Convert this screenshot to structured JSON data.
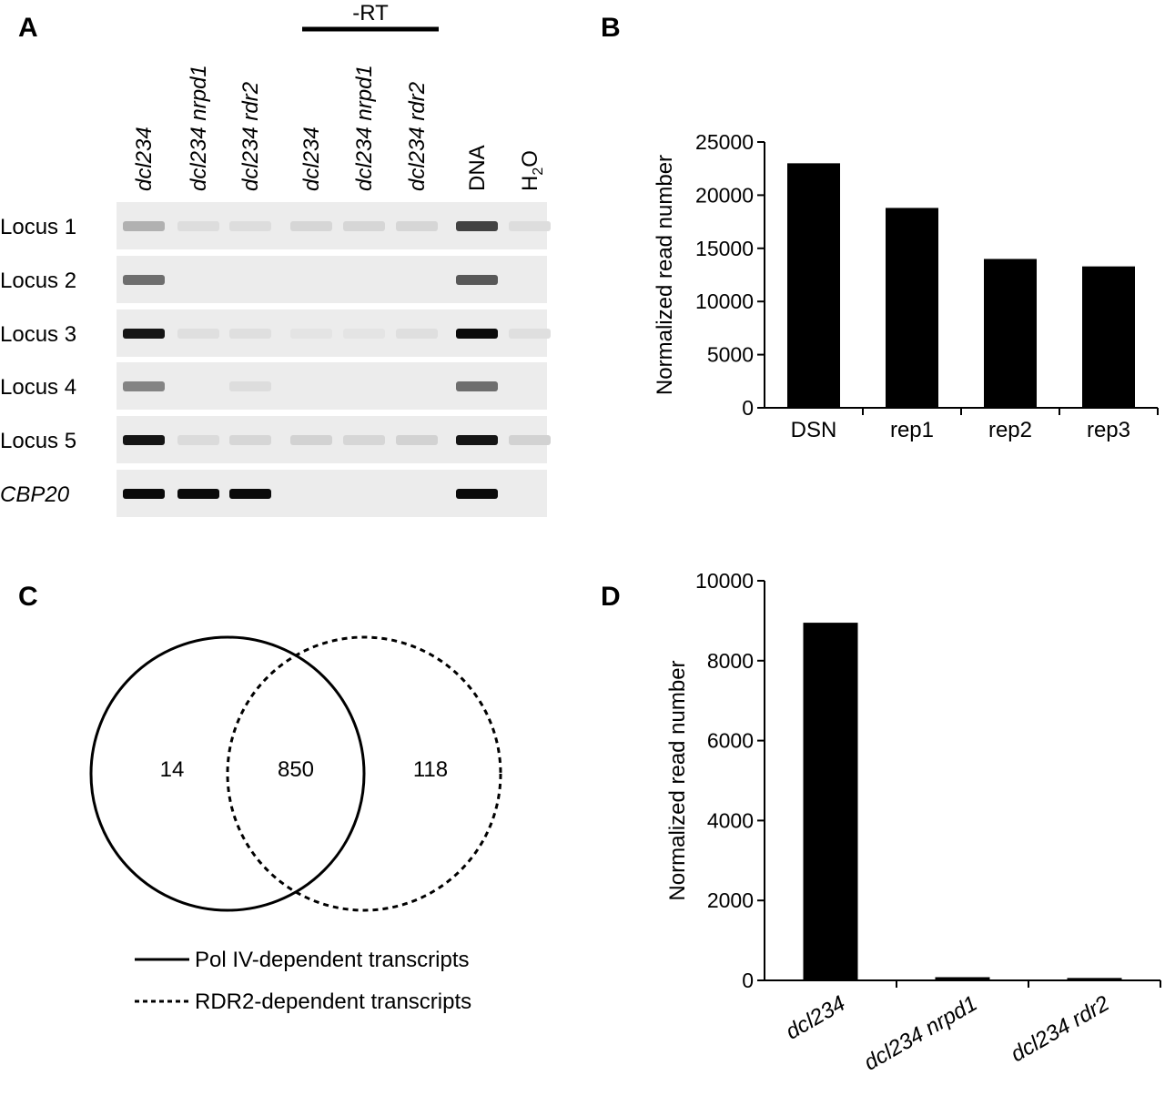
{
  "panels": {
    "a": "A",
    "b": "B",
    "c": "C",
    "d": "D"
  },
  "gel": {
    "rt_label": "-RT",
    "lanes": [
      {
        "label": "dcl234",
        "italic": true
      },
      {
        "label": "dcl234 nrpd1",
        "italic": true
      },
      {
        "label": "dcl234 rdr2",
        "italic": true
      },
      {
        "label": "dcl234",
        "italic": true
      },
      {
        "label": "dcl234 nrpd1",
        "italic": true
      },
      {
        "label": "dcl234 rdr2",
        "italic": true
      },
      {
        "label": "DNA",
        "italic": false
      },
      {
        "label_main": "H",
        "label_sub": "2",
        "label_tail": "O",
        "italic": false
      }
    ],
    "rows": [
      {
        "label": "Locus 1",
        "italic": false,
        "bands": [
          0.25,
          0.05,
          0.05,
          0.08,
          0.08,
          0.08,
          0.75,
          0.05
        ]
      },
      {
        "label": "Locus 2",
        "italic": false,
        "bands": [
          0.55,
          0,
          0,
          0,
          0,
          0,
          0.65,
          0
        ]
      },
      {
        "label": "Locus 3",
        "italic": false,
        "bands": [
          0.95,
          0.04,
          0.04,
          0.02,
          0.02,
          0.04,
          1.0,
          0.04
        ]
      },
      {
        "label": "Locus 4",
        "italic": false,
        "bands": [
          0.45,
          0,
          0.05,
          0,
          0,
          0,
          0.55,
          0
        ]
      },
      {
        "label": "Locus 5",
        "italic": false,
        "bands": [
          0.95,
          0.06,
          0.08,
          0.1,
          0.08,
          0.1,
          0.95,
          0.1
        ]
      },
      {
        "label": "CBP20",
        "italic": true,
        "bands": [
          1.0,
          1.0,
          1.0,
          0,
          0,
          0,
          1.0,
          0
        ]
      }
    ]
  },
  "venn": {
    "left_only": "14",
    "overlap": "850",
    "right_only": "118",
    "legend": [
      {
        "label": "Pol IV-dependent transcripts",
        "style": "solid"
      },
      {
        "label": "RDR2-dependent transcripts",
        "style": "dashed"
      }
    ]
  },
  "chart_data": [
    {
      "panel": "B",
      "type": "bar",
      "categories": [
        "DSN",
        "rep1",
        "rep2",
        "rep3"
      ],
      "values": [
        23000,
        18800,
        14000,
        13300
      ],
      "ylabel": "Normalized read number",
      "xlabel": "",
      "ylim": [
        0,
        25000
      ],
      "yticks": [
        0,
        5000,
        10000,
        15000,
        20000,
        25000
      ],
      "italic_categories": false,
      "bar_color": "#000000"
    },
    {
      "panel": "D",
      "type": "bar",
      "categories": [
        "dcl234",
        "dcl234 nrpd1",
        "dcl234 rdr2"
      ],
      "values": [
        8950,
        80,
        60
      ],
      "ylabel": "Normalized read number",
      "xlabel": "",
      "ylim": [
        0,
        10000
      ],
      "yticks": [
        0,
        2000,
        4000,
        6000,
        8000,
        10000
      ],
      "italic_categories": true,
      "bar_color": "#000000"
    }
  ]
}
